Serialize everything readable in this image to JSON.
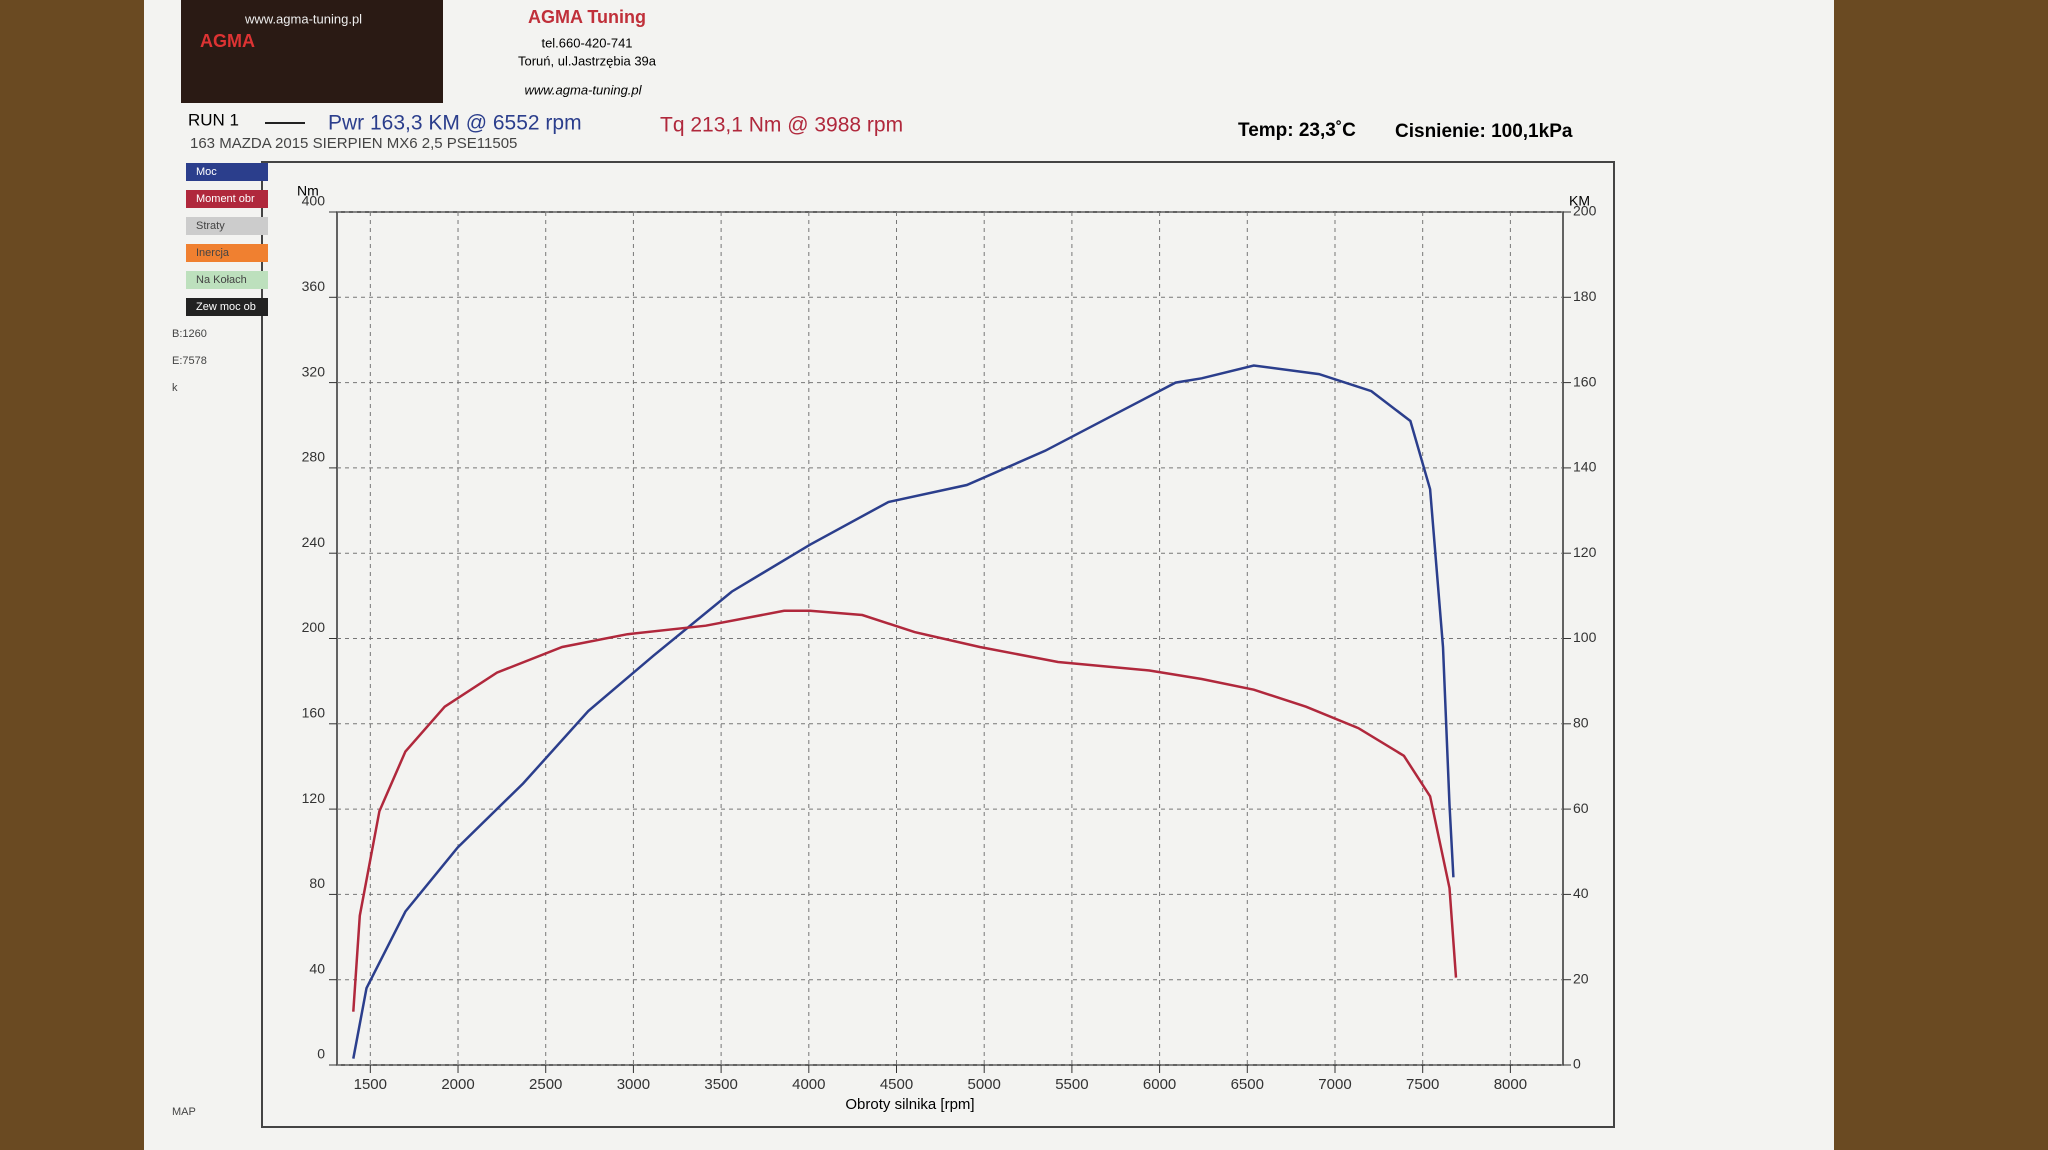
{
  "header": {
    "logo_url": "www.agma-tuning.pl",
    "logo_text": "AGMA",
    "company": "AGMA Tuning",
    "phone": "tel.660-420-741",
    "address": "Toruń, ul.Jastrzębia 39a",
    "website": "www.agma-tuning.pl"
  },
  "chart_data": {
    "type": "line",
    "run_label": "RUN 1",
    "power_summary": "Pwr 163,3 KM @ 6552 rpm",
    "torque_summary": "Tq 213,1 Nm @ 3988 rpm",
    "subtitle": "163 MAZDA 2015 SIERPIEN MX6 2,5 PSE11505",
    "temp": "Temp: 23,3˚C",
    "pressure": "Cisnienie: 100,1kPa",
    "ylabel": "Nm",
    "y2label": "KM",
    "xlabel": "Obroty silnika [rpm]",
    "side_panel": [
      "Straty",
      "Inercja",
      "Na Kołach",
      "Zew moc ob",
      "B:1260",
      "E:7578",
      "k",
      "MAP"
    ],
    "xlim": [
      1310,
      8300
    ],
    "xticks": [
      1500,
      2000,
      2500,
      3000,
      3500,
      4000,
      4500,
      5000,
      5500,
      6000,
      6500,
      7000,
      7500,
      8000
    ],
    "ylim": [
      0,
      400
    ],
    "yticks": [
      0,
      40,
      80,
      120,
      160,
      200,
      240,
      280,
      320,
      360,
      400
    ],
    "y2lim": [
      0,
      200
    ],
    "y2ticks": [
      0,
      20,
      40,
      60,
      80,
      100,
      120,
      140,
      160,
      180,
      200
    ],
    "grid": true,
    "series": [
      {
        "name": "Moc",
        "color": "#2b3e8c",
        "axis": "y2",
        "x": [
          1403,
          1478,
          1700,
          1998,
          2371,
          2743,
          3115,
          3561,
          4007,
          4454,
          4901,
          5347,
          5719,
          6091,
          6240,
          6537,
          6909,
          7207,
          7430,
          7542,
          7616,
          7653,
          7675
        ],
        "values": [
          1.5,
          18,
          36,
          51,
          66,
          83,
          96,
          111,
          122,
          132,
          136,
          144,
          152,
          160,
          161,
          164,
          162,
          158,
          151,
          135,
          98,
          61,
          44
        ]
      },
      {
        "name": "Moment obr",
        "color": "#b0283c",
        "x": [
          1403,
          1440,
          1552,
          1700,
          1924,
          2222,
          2594,
          2966,
          3412,
          3859,
          4007,
          4305,
          4603,
          4975,
          5421,
          5942,
          6240,
          6537,
          6835,
          7133,
          7393,
          7542,
          7653,
          7690
        ],
        "values": [
          25,
          70,
          119,
          147,
          168,
          184,
          196,
          202,
          206,
          213,
          213,
          211,
          203,
          196,
          189,
          185,
          181,
          176,
          168,
          158,
          145,
          126,
          83,
          41
        ]
      }
    ]
  }
}
